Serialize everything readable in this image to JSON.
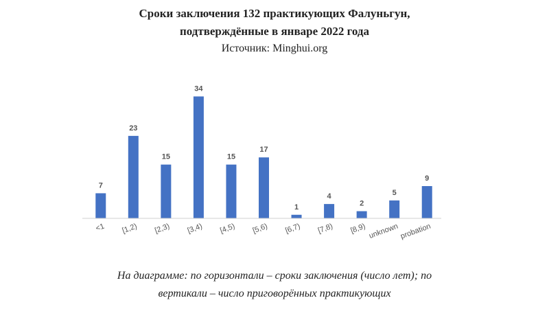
{
  "header": {
    "title_line1": "Сроки заключения 132 практикующих Фалуньгун,",
    "title_line2": "подтверждённые в январе 2022 года",
    "source": "Источник: Minghui.org"
  },
  "caption": {
    "line1": "На диаграмме: по горизонтали – сроки заключения (число лет); по",
    "line2": "вертикали – число приговорённых практикующих"
  },
  "chart_data": {
    "type": "bar",
    "title": "",
    "xlabel": "",
    "ylabel": "",
    "categories": [
      "<1",
      "[1,2)",
      "[2,3)",
      "[3,4)",
      "[4,5)",
      "[5,6)",
      "[6,7)",
      "[7,8)",
      "[8,9)",
      "unknown",
      "probation"
    ],
    "values": [
      7,
      23,
      15,
      34,
      15,
      17,
      1,
      4,
      2,
      5,
      9
    ],
    "ylim": [
      0,
      36
    ],
    "grid": false,
    "bar_color": "#4472c4",
    "data_labels": true
  }
}
